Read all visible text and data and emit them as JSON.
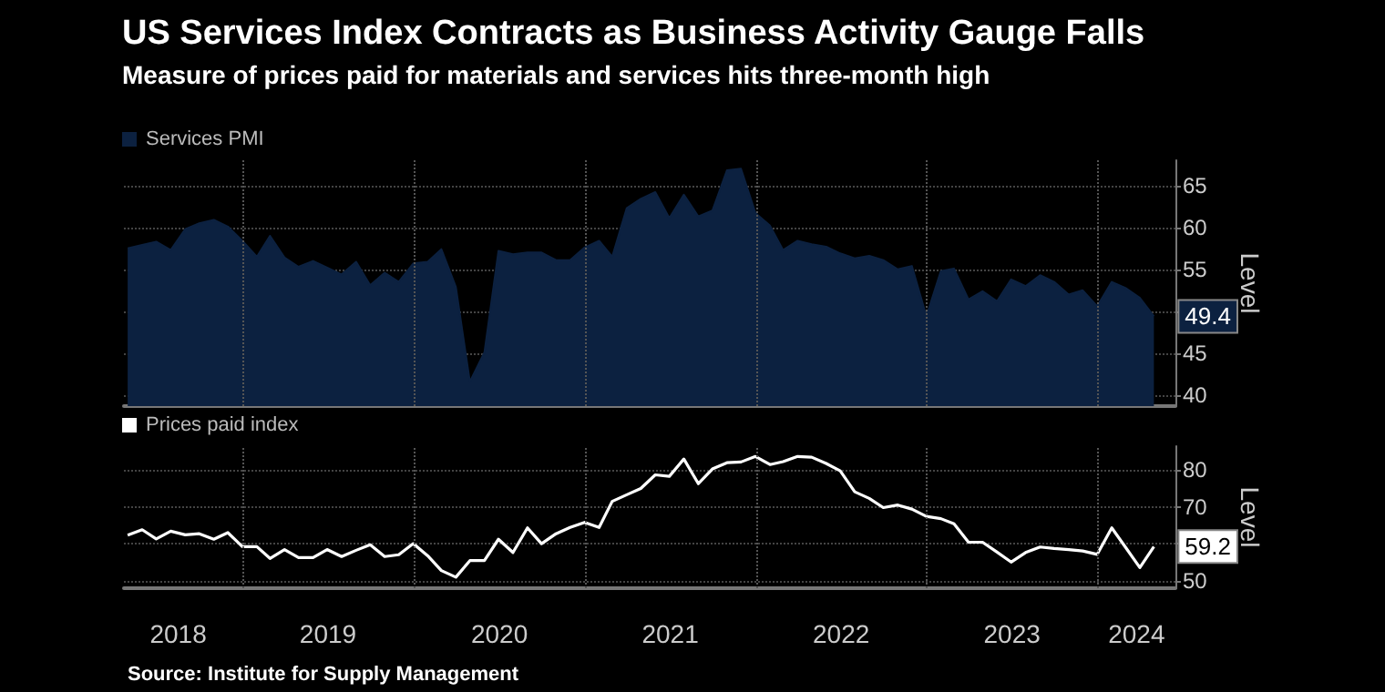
{
  "chart_data": [
    {
      "type": "area",
      "title": "US Services Index Contracts as Business Activity Gauge Falls",
      "subtitle": "Measure of prices paid for materials and services hits three-month high",
      "ylabel": "Level",
      "x": [
        "2018-04-30",
        "2018-05-31",
        "2018-06-30",
        "2018-07-31",
        "2018-08-31",
        "2018-09-30",
        "2018-10-31",
        "2018-11-30",
        "2018-12-31",
        "2019-01-31",
        "2019-02-28",
        "2019-03-31",
        "2019-04-30",
        "2019-05-31",
        "2019-06-30",
        "2019-07-31",
        "2019-08-31",
        "2019-09-30",
        "2019-10-31",
        "2019-11-30",
        "2019-12-31",
        "2020-01-31",
        "2020-02-29",
        "2020-03-31",
        "2020-04-30",
        "2020-05-31",
        "2020-06-30",
        "2020-07-31",
        "2020-08-31",
        "2020-09-30",
        "2020-10-31",
        "2020-11-30",
        "2020-12-31",
        "2021-01-31",
        "2021-02-28",
        "2021-03-31",
        "2021-04-30",
        "2021-05-31",
        "2021-06-30",
        "2021-07-31",
        "2021-08-31",
        "2021-09-30",
        "2021-10-31",
        "2021-11-30",
        "2021-12-31",
        "2022-01-31",
        "2022-02-28",
        "2022-03-31",
        "2022-04-30",
        "2022-05-31",
        "2022-06-30",
        "2022-07-31",
        "2022-08-31",
        "2022-09-30",
        "2022-10-31",
        "2022-11-30",
        "2022-12-31",
        "2023-01-31",
        "2023-02-28",
        "2023-03-31",
        "2023-04-30",
        "2023-05-31",
        "2023-06-30",
        "2023-07-31",
        "2023-08-31",
        "2023-09-30",
        "2023-10-31",
        "2023-11-30",
        "2023-12-31",
        "2024-01-31",
        "2024-02-29",
        "2024-03-31",
        "2024-04-30"
      ],
      "series": [
        {
          "name": "Services PMI",
          "color": "#0c2140",
          "values": [
            57.5,
            57.9,
            58.3,
            57.3,
            59.8,
            60.5,
            60.9,
            60.1,
            58.4,
            56.5,
            59,
            56.4,
            55.3,
            56,
            55.2,
            54.4,
            55.9,
            53.1,
            54.6,
            53.5,
            55.7,
            55.9,
            57.4,
            52.9,
            41.6,
            45.1,
            57.2,
            56.8,
            57,
            57,
            56.1,
            56.1,
            57.6,
            58.4,
            56.5,
            62.3,
            63.4,
            64.2,
            61.1,
            63.9,
            61.3,
            62,
            66.8,
            67,
            61.7,
            60.2,
            57.3,
            58.4,
            58,
            57.7,
            56.9,
            56.3,
            56.6,
            56.1,
            55,
            55.4,
            49.4,
            54.8,
            55.1,
            51.4,
            52.4,
            51.2,
            53.8,
            53,
            54.3,
            53.5,
            52,
            52.5,
            50.6,
            53.5,
            52.8,
            51.6,
            49.4
          ],
          "value_labels": [
            null,
            null,
            null,
            null,
            null,
            null,
            null,
            null,
            null,
            null,
            null,
            null,
            null,
            null,
            null,
            null,
            null,
            null,
            null,
            null,
            null,
            null,
            null,
            null,
            null,
            null,
            null,
            null,
            null,
            null,
            null,
            null,
            null,
            null,
            null,
            null,
            null,
            null,
            null,
            null,
            null,
            null,
            null,
            null,
            null,
            null,
            null,
            null,
            null,
            null,
            null,
            null,
            null,
            null,
            null,
            null,
            null,
            null,
            null,
            null,
            null,
            null,
            null,
            null,
            null,
            null,
            null,
            null,
            null,
            null,
            null,
            null,
            "49.4"
          ]
        }
      ],
      "xlim": [
        "2018-04-22",
        "2024-06-15"
      ],
      "xticks": [
        {
          "value": "2019-01-01",
          "label": null
        },
        {
          "value": "2020-01-01",
          "label": null
        },
        {
          "value": "2021-01-01",
          "label": null
        },
        {
          "value": "2022-01-01",
          "label": null
        },
        {
          "value": "2023-01-01",
          "label": null
        },
        {
          "value": "2024-01-01",
          "label": null
        }
      ],
      "ylim": [
        38.7,
        68
      ],
      "yticks": [
        40,
        45,
        {
          "value": 50,
          "label": null
        },
        55,
        60,
        65
      ],
      "grid": true,
      "legend": "top left",
      "tick_labels": "y"
    },
    {
      "type": "line",
      "ylabel": "Level",
      "annotations": [
        "Source: Institute for Supply Management"
      ],
      "x": [
        "2018-04-30",
        "2018-05-31",
        "2018-06-30",
        "2018-07-31",
        "2018-08-31",
        "2018-09-30",
        "2018-10-31",
        "2018-11-30",
        "2018-12-31",
        "2019-01-31",
        "2019-02-28",
        "2019-03-31",
        "2019-04-30",
        "2019-05-31",
        "2019-06-30",
        "2019-07-31",
        "2019-08-31",
        "2019-09-30",
        "2019-10-31",
        "2019-11-30",
        "2019-12-31",
        "2020-01-31",
        "2020-02-29",
        "2020-03-31",
        "2020-04-30",
        "2020-05-31",
        "2020-06-30",
        "2020-07-31",
        "2020-08-31",
        "2020-09-30",
        "2020-10-31",
        "2020-11-30",
        "2020-12-31",
        "2021-01-31",
        "2021-02-28",
        "2021-03-31",
        "2021-04-30",
        "2021-05-31",
        "2021-06-30",
        "2021-07-31",
        "2021-08-31",
        "2021-09-30",
        "2021-10-31",
        "2021-11-30",
        "2021-12-31",
        "2022-01-31",
        "2022-02-28",
        "2022-03-31",
        "2022-04-30",
        "2022-05-31",
        "2022-06-30",
        "2022-07-31",
        "2022-08-31",
        "2022-09-30",
        "2022-10-31",
        "2022-11-30",
        "2022-12-31",
        "2023-01-31",
        "2023-02-28",
        "2023-03-31",
        "2023-04-30",
        "2023-05-31",
        "2023-06-30",
        "2023-07-31",
        "2023-08-31",
        "2023-09-30",
        "2023-10-31",
        "2023-11-30",
        "2023-12-31",
        "2024-01-31",
        "2024-02-29",
        "2024-03-31",
        "2024-04-30"
      ],
      "series": [
        {
          "name": "Prices paid index",
          "color": "#ffffff",
          "values": [
            62.3,
            63.8,
            61.3,
            63.4,
            62.4,
            62.7,
            61.2,
            63,
            59.2,
            59.2,
            56,
            58.4,
            56.2,
            56.2,
            58.4,
            56.5,
            58.2,
            59.7,
            56.5,
            57,
            60,
            56.7,
            52.7,
            50.9,
            55.4,
            55.4,
            61.2,
            57.6,
            64.3,
            60,
            62.7,
            64.4,
            65.8,
            64.4,
            71.5,
            73.3,
            75,
            78.7,
            78.3,
            83,
            76.3,
            80.3,
            82,
            82.2,
            83.7,
            81.5,
            82.3,
            83.7,
            83.5,
            81.8,
            79.8,
            74.1,
            72.3,
            69.8,
            70.5,
            69.4,
            67.4,
            66.8,
            65.4,
            60.4,
            60.4,
            57.7,
            55,
            57.6,
            59.1,
            58.7,
            58.4,
            58,
            57.1,
            64.3,
            59.1,
            53.5,
            59.2
          ],
          "value_labels": [
            null,
            null,
            null,
            null,
            null,
            null,
            null,
            null,
            null,
            null,
            null,
            null,
            null,
            null,
            null,
            null,
            null,
            null,
            null,
            null,
            null,
            null,
            null,
            null,
            null,
            null,
            null,
            null,
            null,
            null,
            null,
            null,
            null,
            null,
            null,
            null,
            null,
            null,
            null,
            null,
            null,
            null,
            null,
            null,
            null,
            null,
            null,
            null,
            null,
            null,
            null,
            null,
            null,
            null,
            null,
            null,
            null,
            null,
            null,
            null,
            null,
            null,
            null,
            null,
            null,
            null,
            null,
            null,
            null,
            null,
            null,
            null,
            "59.2"
          ]
        }
      ],
      "xlim": [
        "2018-04-22",
        "2024-06-15"
      ],
      "xticks": [
        {
          "value": "2018-08-16",
          "label": "2018"
        },
        {
          "value": "2019-01-01",
          "label": null
        },
        {
          "value": "2019-07-02",
          "label": "2019"
        },
        {
          "value": "2020-01-01",
          "label": null
        },
        {
          "value": "2020-07-02",
          "label": "2020"
        },
        {
          "value": "2021-01-01",
          "label": null
        },
        {
          "value": "2021-07-02",
          "label": "2021"
        },
        {
          "value": "2022-01-01",
          "label": null
        },
        {
          "value": "2022-07-02",
          "label": "2022"
        },
        {
          "value": "2023-01-01",
          "label": null
        },
        {
          "value": "2023-07-02",
          "label": "2023"
        },
        {
          "value": "2024-01-01",
          "label": null
        },
        {
          "value": "2024-03-24",
          "label": "2024"
        }
      ],
      "ylim": [
        47.9,
        86.5
      ],
      "yticks": [
        50,
        {
          "value": 60,
          "label": null
        },
        70,
        80
      ],
      "grid": true,
      "legend": "top left"
    }
  ]
}
